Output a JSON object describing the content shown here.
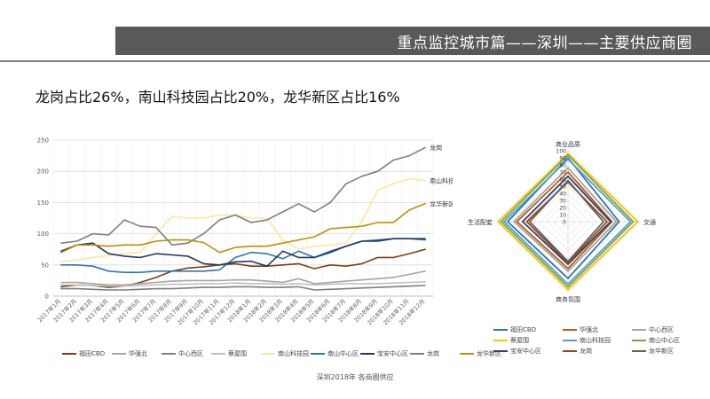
{
  "header": {
    "title": "重点监控城市篇——深圳——主要供应商圈"
  },
  "subtitle": "龙岗占比26%，南山科技园占比20%，龙华新区占比16%",
  "caption": "深圳2018年 各商圈供应",
  "colors": {
    "header_bg": "#595959"
  },
  "chart_data": [
    {
      "type": "line",
      "ylim": [
        0,
        250
      ],
      "yticks": [
        0,
        50,
        100,
        150,
        200,
        250
      ],
      "grid": true,
      "legend": "bottom",
      "categories": [
        "2017年1月",
        "2017年2月",
        "2017年3月",
        "2017年4月",
        "2017年5月",
        "2017年6月",
        "2017年7月",
        "2017年8月",
        "2017年9月",
        "2017年10月",
        "2017年11月",
        "2017年12月",
        "2018年1月",
        "2018年2月",
        "2018年3月",
        "2018年4月",
        "2018年5月",
        "2018年6月",
        "2018年7月",
        "2018年8月",
        "2018年9月",
        "2018年10月",
        "2018年11月",
        "2018年12月"
      ],
      "series": [
        {
          "name": "福田CBD",
          "color": "#843c0c",
          "values": [
            15,
            18,
            17,
            14,
            16,
            22,
            30,
            40,
            45,
            47,
            50,
            52,
            48,
            48,
            50,
            52,
            44,
            50,
            48,
            52,
            62,
            62,
            68,
            75
          ]
        },
        {
          "name": "华强北",
          "color": "#a5a5a5",
          "values": [
            22,
            22,
            20,
            18,
            18,
            20,
            22,
            24,
            25,
            25,
            25,
            26,
            26,
            24,
            22,
            28,
            20,
            22,
            24,
            26,
            28,
            30,
            35,
            40
          ]
        },
        {
          "name": "中心西区",
          "color": "#7f7f7f",
          "values": [
            12,
            12,
            11,
            10,
            10,
            11,
            12,
            12,
            13,
            14,
            14,
            15,
            15,
            14,
            14,
            15,
            10,
            11,
            12,
            13,
            14,
            15,
            16,
            17
          ]
        },
        {
          "name": "蔡屋围",
          "color": "#bfbfbf",
          "values": [
            18,
            18,
            17,
            16,
            16,
            17,
            18,
            19,
            19,
            20,
            20,
            21,
            20,
            20,
            19,
            20,
            18,
            19,
            20,
            20,
            20,
            21,
            22,
            23
          ]
        },
        {
          "name": "南山科技园",
          "color": "#ffe699",
          "values": [
            55,
            58,
            62,
            65,
            68,
            70,
            100,
            128,
            125,
            125,
            130,
            130,
            125,
            125,
            90,
            75,
            80,
            82,
            85,
            120,
            170,
            180,
            188,
            185
          ]
        },
        {
          "name": "南山中心区",
          "color": "#2e75b6",
          "values": [
            50,
            50,
            48,
            40,
            38,
            38,
            40,
            40,
            40,
            40,
            42,
            62,
            70,
            68,
            60,
            72,
            62,
            72,
            80,
            88,
            90,
            92,
            92,
            90
          ]
        },
        {
          "name": "宝安中心区",
          "color": "#1f3864",
          "values": [
            72,
            82,
            85,
            68,
            64,
            62,
            68,
            66,
            64,
            52,
            50,
            55,
            56,
            48,
            72,
            62,
            62,
            70,
            80,
            88,
            88,
            92,
            92,
            92
          ]
        },
        {
          "name": "龙岗",
          "color": "#7f7f7f",
          "values": [
            85,
            88,
            100,
            98,
            122,
            112,
            110,
            82,
            85,
            100,
            122,
            130,
            118,
            122,
            135,
            148,
            135,
            150,
            180,
            192,
            200,
            218,
            225,
            238
          ]
        },
        {
          "name": "龙华新区",
          "color": "#bf9000",
          "values": [
            70,
            82,
            82,
            80,
            82,
            82,
            88,
            90,
            90,
            86,
            70,
            78,
            80,
            80,
            85,
            90,
            95,
            108,
            110,
            112,
            118,
            118,
            138,
            148
          ]
        }
      ],
      "annotations": [
        {
          "text": "龙岗",
          "x": "2018年12月",
          "y": 238
        },
        {
          "text": "南山科技园",
          "x": "2018年12月",
          "y": 185
        },
        {
          "text": "龙华新区",
          "x": "2018年12月",
          "y": 148
        }
      ]
    },
    {
      "type": "radar",
      "axes": [
        "商业品质",
        "交通",
        "商务氛围",
        "生活配套"
      ],
      "rmax": 100,
      "ticks": [
        0,
        10,
        20,
        30,
        40,
        50,
        60,
        70,
        80,
        90,
        100
      ],
      "legend": "bottom",
      "series": [
        {
          "name": "福田CBD",
          "color": "#2e75b6",
          "values": [
            90,
            72,
            80,
            85
          ]
        },
        {
          "name": "华强北",
          "color": "#c55a11",
          "values": [
            70,
            62,
            66,
            72
          ]
        },
        {
          "name": "中心西区",
          "color": "#a5a5a5",
          "values": [
            76,
            68,
            70,
            76
          ]
        },
        {
          "name": "蔡屋围",
          "color": "#ffc000",
          "values": [
            96,
            98,
            96,
            98
          ]
        },
        {
          "name": "南山科技园",
          "color": "#5b9bd5",
          "values": [
            88,
            88,
            88,
            90
          ]
        },
        {
          "name": "南山中心区",
          "color": "#70ad47",
          "values": [
            94,
            92,
            92,
            94
          ]
        },
        {
          "name": "宝安中心区",
          "color": "#264478",
          "values": [
            64,
            60,
            60,
            64
          ]
        },
        {
          "name": "龙岗",
          "color": "#9e480e",
          "values": [
            56,
            55,
            58,
            58
          ]
        },
        {
          "name": "龙华新区",
          "color": "#636363",
          "values": [
            58,
            50,
            56,
            54
          ]
        }
      ]
    }
  ]
}
